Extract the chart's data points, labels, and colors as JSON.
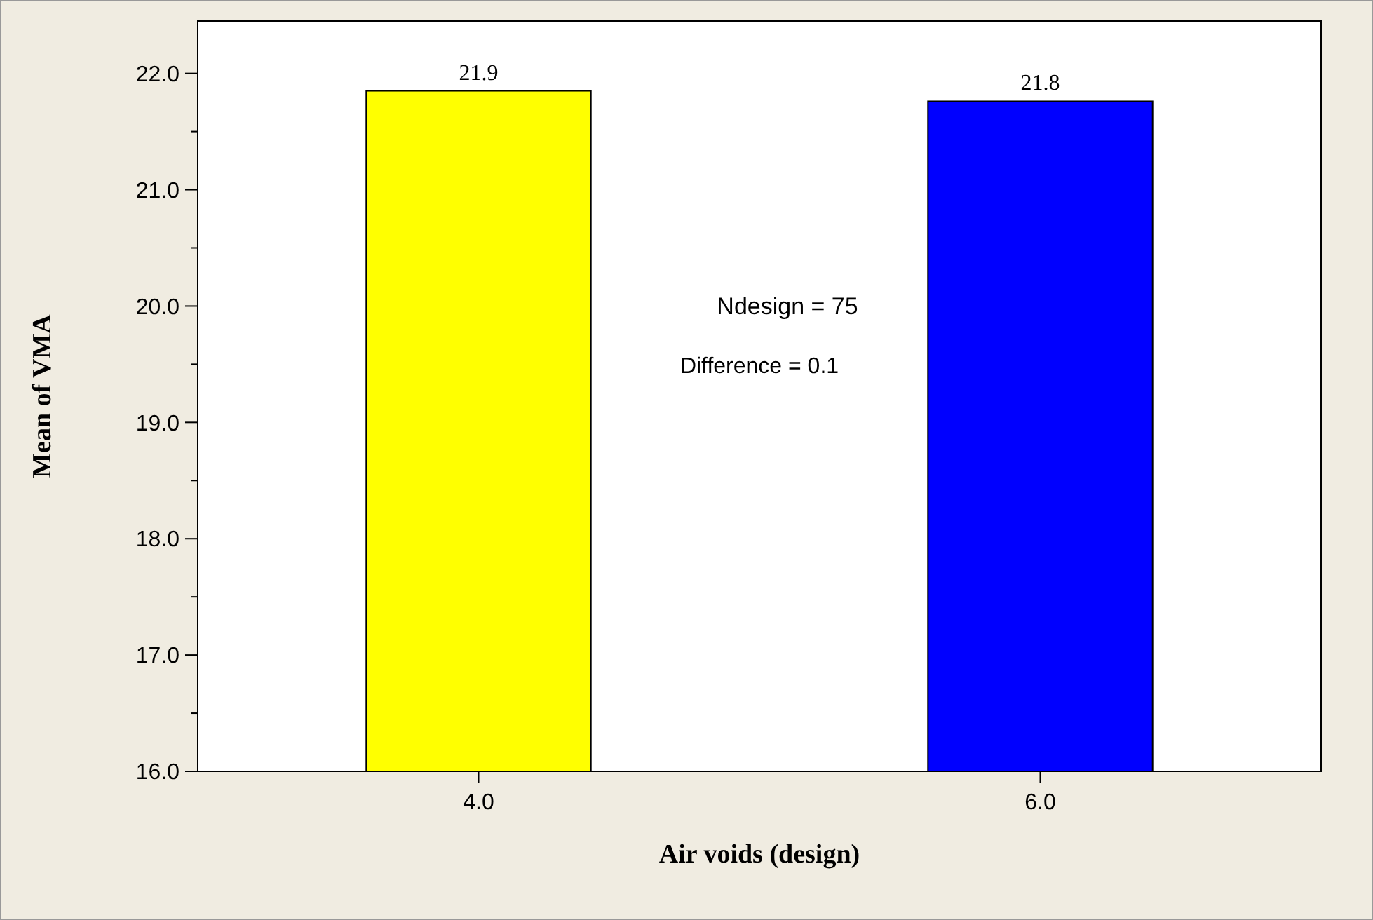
{
  "chart_data": {
    "type": "bar",
    "xlabel": "Air voids (design)",
    "ylabel": "Mean of VMA",
    "categories": [
      "4.0",
      "6.0"
    ],
    "values": [
      21.85,
      21.76
    ],
    "colors": [
      "#ffff00",
      "#0000ff"
    ],
    "value_labels": [
      "21.9",
      "21.8"
    ],
    "ylim": [
      16,
      22.45
    ],
    "yticks": [
      {
        "value": 16,
        "label": "16.0"
      },
      {
        "value": 16.5,
        "label": null
      },
      {
        "value": 17,
        "label": "17.0"
      },
      {
        "value": 17.5,
        "label": null
      },
      {
        "value": 18,
        "label": "18.0"
      },
      {
        "value": 18.5,
        "label": null
      },
      {
        "value": 19,
        "label": "19.0"
      },
      {
        "value": 19.5,
        "label": null
      },
      {
        "value": 20,
        "label": "20.0"
      },
      {
        "value": 20.5,
        "label": null
      },
      {
        "value": 21,
        "label": "21.0"
      },
      {
        "value": 21.5,
        "label": null
      },
      {
        "value": 22,
        "label": "22.0"
      }
    ],
    "annotations": [
      "Ndesign = 75",
      "Difference = 0.1"
    ],
    "grid": false
  }
}
